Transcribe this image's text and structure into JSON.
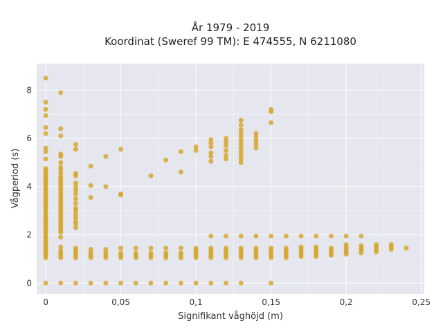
{
  "chart_data": {
    "type": "scatter",
    "title_line1": "År 1979 - 2019",
    "title_line2": "Koordinat (Sweref 99 TM): E 474555, N 6211080",
    "xlabel": "Signifikant våghöjd (m)",
    "ylabel": "Vågperiod (s)",
    "xlim": [
      -0.006,
      0.252
    ],
    "ylim": [
      -0.45,
      9.1
    ],
    "grid": true,
    "marker_color": "#d4a424",
    "background_color": "#e5e6ee",
    "x_ticks": [
      {
        "value": 0,
        "label": "0"
      },
      {
        "value": 0.05,
        "label": "0,05"
      },
      {
        "value": 0.1,
        "label": "0,1"
      },
      {
        "value": 0.15,
        "label": "0,15"
      },
      {
        "value": 0.2,
        "label": "0,2"
      },
      {
        "value": 0.25,
        "label": "0,25"
      }
    ],
    "y_ticks": [
      {
        "value": 0,
        "label": "0"
      },
      {
        "value": 2,
        "label": "2"
      },
      {
        "value": 4,
        "label": "4"
      },
      {
        "value": 6,
        "label": "6"
      },
      {
        "value": 8,
        "label": "8"
      }
    ],
    "columns": [
      {
        "x": 0,
        "y": [
          0,
          1.05,
          1.15,
          1.25,
          1.35,
          1.45,
          1.55,
          1.65,
          1.75,
          1.85,
          1.95,
          2.05,
          2.15,
          2.25,
          2.35,
          2.45,
          2.55,
          2.65,
          2.75,
          2.85,
          2.95,
          3.05,
          3.15,
          3.25,
          3.35,
          3.45,
          3.55,
          3.65,
          3.75,
          3.85,
          3.95,
          4.05,
          4.15,
          4.25,
          4.35,
          4.45,
          4.55,
          4.65,
          4.75,
          5.15,
          5.45,
          5.6,
          6.2,
          6.45,
          6.95,
          7.2,
          7.5,
          8.5
        ]
      },
      {
        "x": 0.01,
        "y": [
          0,
          1.05,
          1.15,
          1.25,
          1.35,
          1.5,
          1.9,
          2.1,
          2.2,
          2.3,
          2.4,
          2.5,
          2.6,
          2.7,
          2.8,
          2.9,
          3.0,
          3.1,
          3.2,
          3.3,
          3.4,
          3.5,
          3.6,
          3.7,
          3.8,
          3.9,
          4.0,
          4.1,
          4.2,
          4.3,
          4.4,
          4.55,
          4.7,
          4.8,
          5.0,
          5.25,
          5.35,
          6.1,
          6.4,
          7.9
        ]
      },
      {
        "x": 0.02,
        "y": [
          0,
          1.05,
          1.15,
          1.25,
          1.35,
          1.45,
          2.3,
          2.45,
          2.55,
          2.7,
          2.85,
          3.0,
          3.1,
          3.3,
          3.5,
          3.7,
          3.85,
          4.0,
          4.15,
          4.45,
          4.55,
          5.55,
          5.75
        ]
      },
      {
        "x": 0.03,
        "y": [
          0,
          1.05,
          1.15,
          1.25,
          1.4,
          3.55,
          4.05,
          4.85
        ]
      },
      {
        "x": 0.04,
        "y": [
          0,
          1.05,
          1.15,
          1.25,
          1.4,
          4.0,
          5.25
        ]
      },
      {
        "x": 0.05,
        "y": [
          0,
          1.05,
          1.15,
          1.25,
          1.45,
          3.65,
          3.7,
          5.55
        ]
      },
      {
        "x": 0.06,
        "y": [
          0,
          1.05,
          1.15,
          1.25,
          1.45
        ]
      },
      {
        "x": 0.07,
        "y": [
          0,
          1.05,
          1.15,
          1.25,
          1.45,
          4.45
        ]
      },
      {
        "x": 0.08,
        "y": [
          0,
          1.05,
          1.15,
          1.25,
          1.45,
          5.1
        ]
      },
      {
        "x": 0.09,
        "y": [
          0,
          1.05,
          1.15,
          1.25,
          1.45,
          4.6,
          5.45
        ]
      },
      {
        "x": 0.1,
        "y": [
          0,
          1.05,
          1.15,
          1.25,
          1.35,
          1.45,
          5.5,
          5.65
        ]
      },
      {
        "x": 0.11,
        "y": [
          0,
          1.05,
          1.15,
          1.25,
          1.35,
          1.45,
          1.95,
          5.05,
          5.25,
          5.4,
          5.65,
          5.8,
          5.95
        ]
      },
      {
        "x": 0.12,
        "y": [
          0,
          1.05,
          1.15,
          1.25,
          1.35,
          1.45,
          1.95,
          5.15,
          5.3,
          5.5,
          5.7,
          5.85,
          6.0
        ]
      },
      {
        "x": 0.13,
        "y": [
          0,
          1.05,
          1.15,
          1.25,
          1.35,
          1.45,
          1.95,
          5.0,
          5.15,
          5.3,
          5.45,
          5.6,
          5.75,
          5.9,
          6.05,
          6.2,
          6.35,
          6.55,
          6.75
        ]
      },
      {
        "x": 0.14,
        "y": [
          1.05,
          1.15,
          1.25,
          1.35,
          1.45,
          1.95,
          5.6,
          5.75,
          5.9,
          6.05,
          6.2
        ]
      },
      {
        "x": 0.15,
        "y": [
          0,
          1.05,
          1.15,
          1.25,
          1.35,
          1.45,
          1.95,
          6.65,
          7.1,
          7.2
        ]
      },
      {
        "x": 0.16,
        "y": [
          1.05,
          1.15,
          1.25,
          1.35,
          1.45,
          1.95
        ]
      },
      {
        "x": 0.17,
        "y": [
          1.1,
          1.2,
          1.3,
          1.4,
          1.5,
          1.95
        ]
      },
      {
        "x": 0.18,
        "y": [
          1.1,
          1.2,
          1.3,
          1.4,
          1.5,
          1.95
        ]
      },
      {
        "x": 0.19,
        "y": [
          1.15,
          1.25,
          1.35,
          1.45,
          1.95
        ]
      },
      {
        "x": 0.2,
        "y": [
          1.2,
          1.3,
          1.4,
          1.5,
          1.6,
          1.95
        ]
      },
      {
        "x": 0.21,
        "y": [
          1.25,
          1.35,
          1.45,
          1.55,
          1.95
        ]
      },
      {
        "x": 0.22,
        "y": [
          1.3,
          1.4,
          1.5,
          1.6
        ]
      },
      {
        "x": 0.23,
        "y": [
          1.4,
          1.5,
          1.6
        ]
      },
      {
        "x": 0.24,
        "y": [
          1.45
        ]
      }
    ]
  }
}
